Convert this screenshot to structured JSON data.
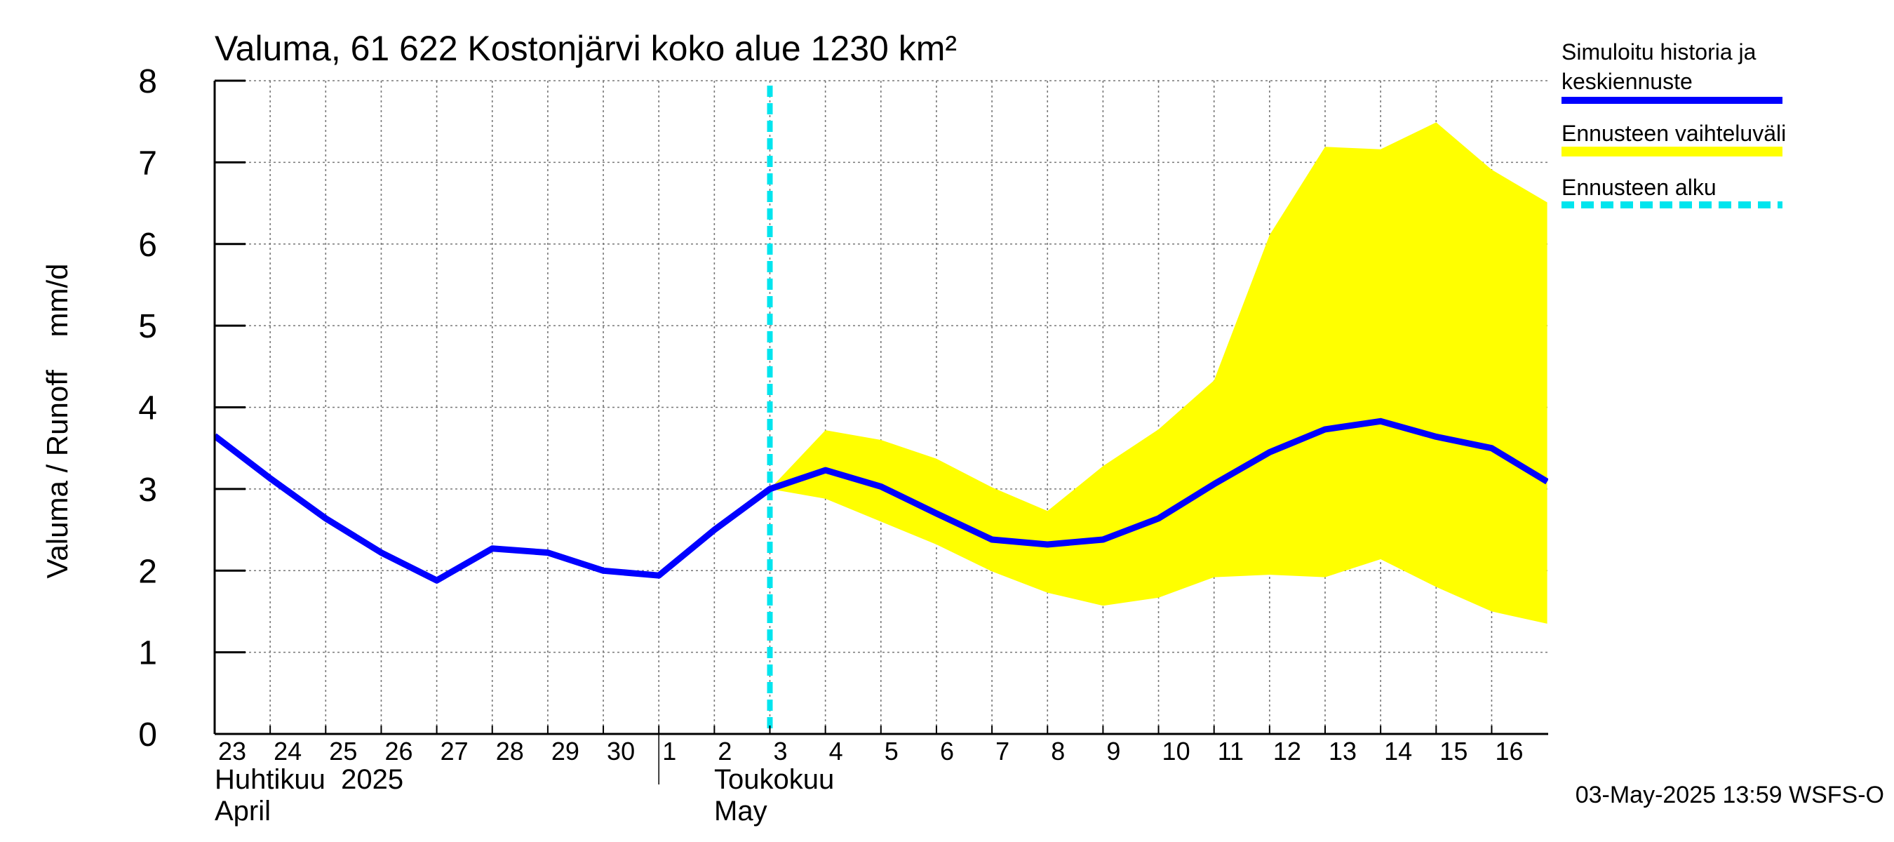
{
  "chart_data": {
    "type": "line",
    "title": "Valuma, 61 622 Kostonjärvi koko alue 1230 km²",
    "ylabel": "Valuma / Runoff    mm/d",
    "ylim": [
      0,
      8
    ],
    "yticks": [
      "0",
      "1",
      "2",
      "3",
      "4",
      "5",
      "6",
      "7",
      "8"
    ],
    "x_day_labels": [
      "23",
      "24",
      "25",
      "26",
      "27",
      "28",
      "29",
      "30",
      "1",
      "2",
      "3",
      "4",
      "5",
      "6",
      "7",
      "8",
      "9",
      "10",
      "11",
      "12",
      "13",
      "14",
      "15",
      "16"
    ],
    "month_labels": [
      {
        "fi": "Huhtikuu  2025",
        "en": "April"
      },
      {
        "fi": "Toukokuu",
        "en": "May"
      }
    ],
    "grid": true,
    "legend_position": "right",
    "legend": [
      {
        "label_line1": "Simuloitu historia ja",
        "label_line2": "keskiennuste",
        "color": "#0000ff",
        "style": "solid"
      },
      {
        "label_line1": "Ennusteen vaihteluväli",
        "label_line2": "",
        "color": "#ffff00",
        "style": "band"
      },
      {
        "label_line1": "Ennusteen alku",
        "label_line2": "",
        "color": "#00e5ee",
        "style": "dashed"
      }
    ],
    "series": [
      {
        "name": "Simuloitu historia ja keskiennuste",
        "color": "#0000ff",
        "x": [
          "2025-04-23",
          "2025-04-24",
          "2025-04-25",
          "2025-04-26",
          "2025-04-27",
          "2025-04-28",
          "2025-04-29",
          "2025-04-30",
          "2025-05-01",
          "2025-05-02",
          "2025-05-03",
          "2025-05-04",
          "2025-05-05",
          "2025-05-06",
          "2025-05-07",
          "2025-05-08",
          "2025-05-09",
          "2025-05-10",
          "2025-05-11",
          "2025-05-12",
          "2025-05-13",
          "2025-05-14",
          "2025-05-15",
          "2025-05-16",
          "2025-05-17"
        ],
        "values": [
          3.65,
          3.13,
          2.64,
          2.22,
          1.88,
          2.27,
          2.22,
          2.0,
          1.94,
          2.5,
          3.0,
          3.23,
          3.03,
          2.7,
          2.38,
          2.32,
          2.38,
          2.64,
          3.06,
          3.45,
          3.73,
          3.83,
          3.64,
          3.5,
          3.09
        ]
      }
    ],
    "band": {
      "name": "Ennusteen vaihteluväli",
      "color": "#ffff00",
      "x": [
        "2025-05-03",
        "2025-05-04",
        "2025-05-05",
        "2025-05-06",
        "2025-05-07",
        "2025-05-08",
        "2025-05-09",
        "2025-05-10",
        "2025-05-11",
        "2025-05-12",
        "2025-05-13",
        "2025-05-14",
        "2025-05-15",
        "2025-05-16",
        "2025-05-17"
      ],
      "upper": [
        3.0,
        3.72,
        3.6,
        3.37,
        3.02,
        2.73,
        3.28,
        3.73,
        4.33,
        6.11,
        7.19,
        7.16,
        7.49,
        6.91,
        6.51
      ],
      "lower": [
        3.0,
        2.88,
        2.6,
        2.32,
        1.99,
        1.73,
        1.57,
        1.67,
        1.92,
        1.95,
        1.92,
        2.14,
        1.8,
        1.5,
        1.35
      ]
    },
    "forecast_start": "2025-05-03",
    "footer": "03-May-2025 13:59 WSFS-O"
  }
}
